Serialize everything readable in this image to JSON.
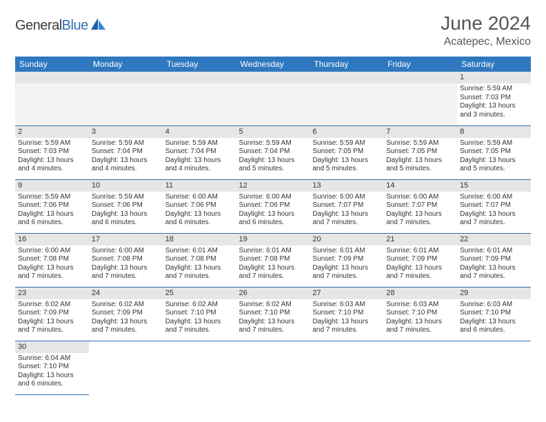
{
  "brand": {
    "part1": "General",
    "part2": "Blue"
  },
  "colors": {
    "header_bg": "#2f78bf",
    "header_text": "#ffffff",
    "rule": "#2f6fb0",
    "daynum_bg": "#e6e6e6",
    "empty_bg": "#f2f2f2",
    "text": "#333333",
    "title_color": "#555555"
  },
  "title": "June 2024",
  "location": "Acatepec, Mexico",
  "weekday_labels": [
    "Sunday",
    "Monday",
    "Tuesday",
    "Wednesday",
    "Thursday",
    "Friday",
    "Saturday"
  ],
  "weeks": [
    [
      null,
      null,
      null,
      null,
      null,
      null,
      {
        "n": "1",
        "sunrise": "Sunrise: 5:59 AM",
        "sunset": "Sunset: 7:03 PM",
        "daylight": "Daylight: 13 hours and 3 minutes."
      }
    ],
    [
      {
        "n": "2",
        "sunrise": "Sunrise: 5:59 AM",
        "sunset": "Sunset: 7:03 PM",
        "daylight": "Daylight: 13 hours and 4 minutes."
      },
      {
        "n": "3",
        "sunrise": "Sunrise: 5:59 AM",
        "sunset": "Sunset: 7:04 PM",
        "daylight": "Daylight: 13 hours and 4 minutes."
      },
      {
        "n": "4",
        "sunrise": "Sunrise: 5:59 AM",
        "sunset": "Sunset: 7:04 PM",
        "daylight": "Daylight: 13 hours and 4 minutes."
      },
      {
        "n": "5",
        "sunrise": "Sunrise: 5:59 AM",
        "sunset": "Sunset: 7:04 PM",
        "daylight": "Daylight: 13 hours and 5 minutes."
      },
      {
        "n": "6",
        "sunrise": "Sunrise: 5:59 AM",
        "sunset": "Sunset: 7:05 PM",
        "daylight": "Daylight: 13 hours and 5 minutes."
      },
      {
        "n": "7",
        "sunrise": "Sunrise: 5:59 AM",
        "sunset": "Sunset: 7:05 PM",
        "daylight": "Daylight: 13 hours and 5 minutes."
      },
      {
        "n": "8",
        "sunrise": "Sunrise: 5:59 AM",
        "sunset": "Sunset: 7:05 PM",
        "daylight": "Daylight: 13 hours and 5 minutes."
      }
    ],
    [
      {
        "n": "9",
        "sunrise": "Sunrise: 5:59 AM",
        "sunset": "Sunset: 7:06 PM",
        "daylight": "Daylight: 13 hours and 6 minutes."
      },
      {
        "n": "10",
        "sunrise": "Sunrise: 5:59 AM",
        "sunset": "Sunset: 7:06 PM",
        "daylight": "Daylight: 13 hours and 6 minutes."
      },
      {
        "n": "11",
        "sunrise": "Sunrise: 6:00 AM",
        "sunset": "Sunset: 7:06 PM",
        "daylight": "Daylight: 13 hours and 6 minutes."
      },
      {
        "n": "12",
        "sunrise": "Sunrise: 6:00 AM",
        "sunset": "Sunset: 7:06 PM",
        "daylight": "Daylight: 13 hours and 6 minutes."
      },
      {
        "n": "13",
        "sunrise": "Sunrise: 6:00 AM",
        "sunset": "Sunset: 7:07 PM",
        "daylight": "Daylight: 13 hours and 7 minutes."
      },
      {
        "n": "14",
        "sunrise": "Sunrise: 6:00 AM",
        "sunset": "Sunset: 7:07 PM",
        "daylight": "Daylight: 13 hours and 7 minutes."
      },
      {
        "n": "15",
        "sunrise": "Sunrise: 6:00 AM",
        "sunset": "Sunset: 7:07 PM",
        "daylight": "Daylight: 13 hours and 7 minutes."
      }
    ],
    [
      {
        "n": "16",
        "sunrise": "Sunrise: 6:00 AM",
        "sunset": "Sunset: 7:08 PM",
        "daylight": "Daylight: 13 hours and 7 minutes."
      },
      {
        "n": "17",
        "sunrise": "Sunrise: 6:00 AM",
        "sunset": "Sunset: 7:08 PM",
        "daylight": "Daylight: 13 hours and 7 minutes."
      },
      {
        "n": "18",
        "sunrise": "Sunrise: 6:01 AM",
        "sunset": "Sunset: 7:08 PM",
        "daylight": "Daylight: 13 hours and 7 minutes."
      },
      {
        "n": "19",
        "sunrise": "Sunrise: 6:01 AM",
        "sunset": "Sunset: 7:08 PM",
        "daylight": "Daylight: 13 hours and 7 minutes."
      },
      {
        "n": "20",
        "sunrise": "Sunrise: 6:01 AM",
        "sunset": "Sunset: 7:09 PM",
        "daylight": "Daylight: 13 hours and 7 minutes."
      },
      {
        "n": "21",
        "sunrise": "Sunrise: 6:01 AM",
        "sunset": "Sunset: 7:09 PM",
        "daylight": "Daylight: 13 hours and 7 minutes."
      },
      {
        "n": "22",
        "sunrise": "Sunrise: 6:01 AM",
        "sunset": "Sunset: 7:09 PM",
        "daylight": "Daylight: 13 hours and 7 minutes."
      }
    ],
    [
      {
        "n": "23",
        "sunrise": "Sunrise: 6:02 AM",
        "sunset": "Sunset: 7:09 PM",
        "daylight": "Daylight: 13 hours and 7 minutes."
      },
      {
        "n": "24",
        "sunrise": "Sunrise: 6:02 AM",
        "sunset": "Sunset: 7:09 PM",
        "daylight": "Daylight: 13 hours and 7 minutes."
      },
      {
        "n": "25",
        "sunrise": "Sunrise: 6:02 AM",
        "sunset": "Sunset: 7:10 PM",
        "daylight": "Daylight: 13 hours and 7 minutes."
      },
      {
        "n": "26",
        "sunrise": "Sunrise: 6:02 AM",
        "sunset": "Sunset: 7:10 PM",
        "daylight": "Daylight: 13 hours and 7 minutes."
      },
      {
        "n": "27",
        "sunrise": "Sunrise: 6:03 AM",
        "sunset": "Sunset: 7:10 PM",
        "daylight": "Daylight: 13 hours and 7 minutes."
      },
      {
        "n": "28",
        "sunrise": "Sunrise: 6:03 AM",
        "sunset": "Sunset: 7:10 PM",
        "daylight": "Daylight: 13 hours and 7 minutes."
      },
      {
        "n": "29",
        "sunrise": "Sunrise: 6:03 AM",
        "sunset": "Sunset: 7:10 PM",
        "daylight": "Daylight: 13 hours and 6 minutes."
      }
    ],
    [
      {
        "n": "30",
        "sunrise": "Sunrise: 6:04 AM",
        "sunset": "Sunset: 7:10 PM",
        "daylight": "Daylight: 13 hours and 6 minutes."
      },
      null,
      null,
      null,
      null,
      null,
      null
    ]
  ]
}
